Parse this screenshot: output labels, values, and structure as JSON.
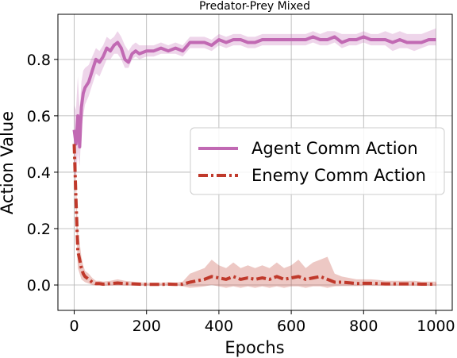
{
  "chart_data": {
    "type": "line",
    "title": "Predator-Prey Mixed",
    "xlabel": "Epochs",
    "ylabel": "Action Value",
    "xlim": [
      -45,
      1045
    ],
    "ylim": [
      -0.09,
      0.96
    ],
    "xticks": [
      0,
      200,
      400,
      600,
      800,
      1000
    ],
    "yticks": [
      0.0,
      0.2,
      0.4,
      0.6,
      0.8
    ],
    "xtick_labels": [
      "0",
      "200",
      "400",
      "600",
      "800",
      "1000"
    ],
    "ytick_labels": [
      "0.0",
      "0.2",
      "0.4",
      "0.6",
      "0.8"
    ],
    "grid": true,
    "legend_position": "center-right",
    "series": [
      {
        "name": "Agent Comm Action",
        "color": "#c169b3",
        "style": "solid",
        "x": [
          0,
          5,
          10,
          15,
          20,
          25,
          30,
          40,
          50,
          60,
          70,
          80,
          90,
          100,
          110,
          120,
          130,
          140,
          150,
          160,
          170,
          180,
          200,
          220,
          240,
          260,
          280,
          300,
          320,
          340,
          360,
          380,
          400,
          420,
          440,
          460,
          480,
          500,
          520,
          540,
          560,
          580,
          600,
          620,
          640,
          660,
          680,
          700,
          720,
          740,
          760,
          780,
          800,
          820,
          840,
          860,
          880,
          900,
          920,
          940,
          960,
          980,
          1000
        ],
        "y": [
          0.55,
          0.5,
          0.6,
          0.49,
          0.63,
          0.68,
          0.7,
          0.72,
          0.76,
          0.8,
          0.79,
          0.81,
          0.84,
          0.83,
          0.85,
          0.86,
          0.84,
          0.8,
          0.79,
          0.82,
          0.83,
          0.82,
          0.83,
          0.83,
          0.84,
          0.83,
          0.84,
          0.83,
          0.86,
          0.86,
          0.86,
          0.85,
          0.87,
          0.86,
          0.87,
          0.87,
          0.86,
          0.86,
          0.87,
          0.87,
          0.87,
          0.87,
          0.87,
          0.87,
          0.87,
          0.88,
          0.87,
          0.87,
          0.88,
          0.86,
          0.87,
          0.87,
          0.88,
          0.87,
          0.87,
          0.87,
          0.86,
          0.87,
          0.86,
          0.86,
          0.86,
          0.87,
          0.87
        ],
        "lower": [
          0.4,
          0.38,
          0.47,
          0.42,
          0.55,
          0.6,
          0.64,
          0.67,
          0.71,
          0.75,
          0.74,
          0.77,
          0.8,
          0.8,
          0.82,
          0.82,
          0.8,
          0.77,
          0.77,
          0.8,
          0.81,
          0.8,
          0.81,
          0.81,
          0.82,
          0.82,
          0.82,
          0.81,
          0.84,
          0.84,
          0.84,
          0.83,
          0.85,
          0.84,
          0.85,
          0.85,
          0.84,
          0.84,
          0.85,
          0.85,
          0.85,
          0.85,
          0.85,
          0.85,
          0.85,
          0.86,
          0.85,
          0.85,
          0.86,
          0.84,
          0.85,
          0.85,
          0.86,
          0.85,
          0.85,
          0.85,
          0.83,
          0.84,
          0.84,
          0.83,
          0.84,
          0.85,
          0.85
        ],
        "upper": [
          0.64,
          0.62,
          0.74,
          0.62,
          0.72,
          0.76,
          0.77,
          0.78,
          0.81,
          0.84,
          0.83,
          0.85,
          0.88,
          0.87,
          0.88,
          0.9,
          0.88,
          0.85,
          0.83,
          0.85,
          0.86,
          0.85,
          0.85,
          0.85,
          0.86,
          0.85,
          0.86,
          0.85,
          0.88,
          0.88,
          0.88,
          0.87,
          0.89,
          0.88,
          0.89,
          0.89,
          0.88,
          0.88,
          0.89,
          0.89,
          0.89,
          0.89,
          0.89,
          0.89,
          0.89,
          0.9,
          0.89,
          0.9,
          0.9,
          0.89,
          0.89,
          0.89,
          0.9,
          0.89,
          0.89,
          0.9,
          0.89,
          0.9,
          0.89,
          0.89,
          0.89,
          0.9,
          0.91
        ]
      },
      {
        "name": "Enemy Comm Action",
        "color": "#c0392b",
        "style": "dashdot",
        "x": [
          0,
          5,
          10,
          15,
          20,
          25,
          30,
          40,
          50,
          60,
          70,
          80,
          100,
          120,
          140,
          160,
          180,
          200,
          220,
          240,
          260,
          280,
          300,
          320,
          340,
          360,
          380,
          400,
          420,
          440,
          460,
          480,
          500,
          520,
          540,
          560,
          580,
          600,
          620,
          640,
          660,
          680,
          700,
          720,
          740,
          760,
          780,
          800,
          820,
          840,
          860,
          880,
          900,
          920,
          940,
          960,
          980,
          1000
        ],
        "y": [
          0.5,
          0.3,
          0.12,
          0.09,
          0.06,
          0.04,
          0.03,
          0.02,
          0.01,
          0.005,
          0.005,
          0.003,
          0.005,
          0.007,
          0.005,
          0.004,
          0.003,
          0.002,
          0.002,
          0.002,
          0.003,
          0.002,
          0.003,
          0.01,
          0.015,
          0.02,
          0.03,
          0.025,
          0.02,
          0.03,
          0.02,
          0.025,
          0.02,
          0.025,
          0.02,
          0.03,
          0.02,
          0.025,
          0.03,
          0.02,
          0.025,
          0.03,
          0.02,
          0.01,
          0.01,
          0.008,
          0.005,
          0.006,
          0.006,
          0.005,
          0.004,
          0.004,
          0.004,
          0.004,
          0.004,
          0.003,
          0.003,
          0.003
        ],
        "lower": [
          0.45,
          0.24,
          0.06,
          0.04,
          0.02,
          0.015,
          0.01,
          0.005,
          0.0,
          -0.002,
          -0.002,
          -0.003,
          -0.002,
          -0.002,
          -0.002,
          -0.002,
          -0.002,
          -0.002,
          -0.002,
          -0.002,
          -0.002,
          -0.002,
          -0.005,
          -0.01,
          -0.008,
          -0.005,
          0.0,
          -0.005,
          -0.01,
          -0.005,
          -0.01,
          -0.005,
          -0.01,
          -0.005,
          -0.01,
          -0.005,
          -0.01,
          -0.005,
          -0.005,
          -0.01,
          -0.005,
          -0.005,
          -0.01,
          -0.005,
          -0.004,
          -0.004,
          -0.004,
          -0.003,
          -0.003,
          -0.003,
          -0.003,
          -0.003,
          -0.003,
          -0.003,
          -0.003,
          -0.003,
          -0.003,
          -0.003
        ],
        "upper": [
          0.55,
          0.38,
          0.19,
          0.15,
          0.1,
          0.07,
          0.05,
          0.04,
          0.025,
          0.015,
          0.015,
          0.012,
          0.015,
          0.02,
          0.015,
          0.012,
          0.01,
          0.008,
          0.008,
          0.008,
          0.01,
          0.008,
          0.012,
          0.04,
          0.05,
          0.06,
          0.09,
          0.07,
          0.06,
          0.08,
          0.06,
          0.07,
          0.06,
          0.07,
          0.06,
          0.08,
          0.06,
          0.07,
          0.09,
          0.06,
          0.08,
          0.09,
          0.1,
          0.04,
          0.03,
          0.025,
          0.02,
          0.02,
          0.02,
          0.018,
          0.015,
          0.015,
          0.015,
          0.015,
          0.015,
          0.012,
          0.012,
          0.012
        ]
      }
    ]
  }
}
